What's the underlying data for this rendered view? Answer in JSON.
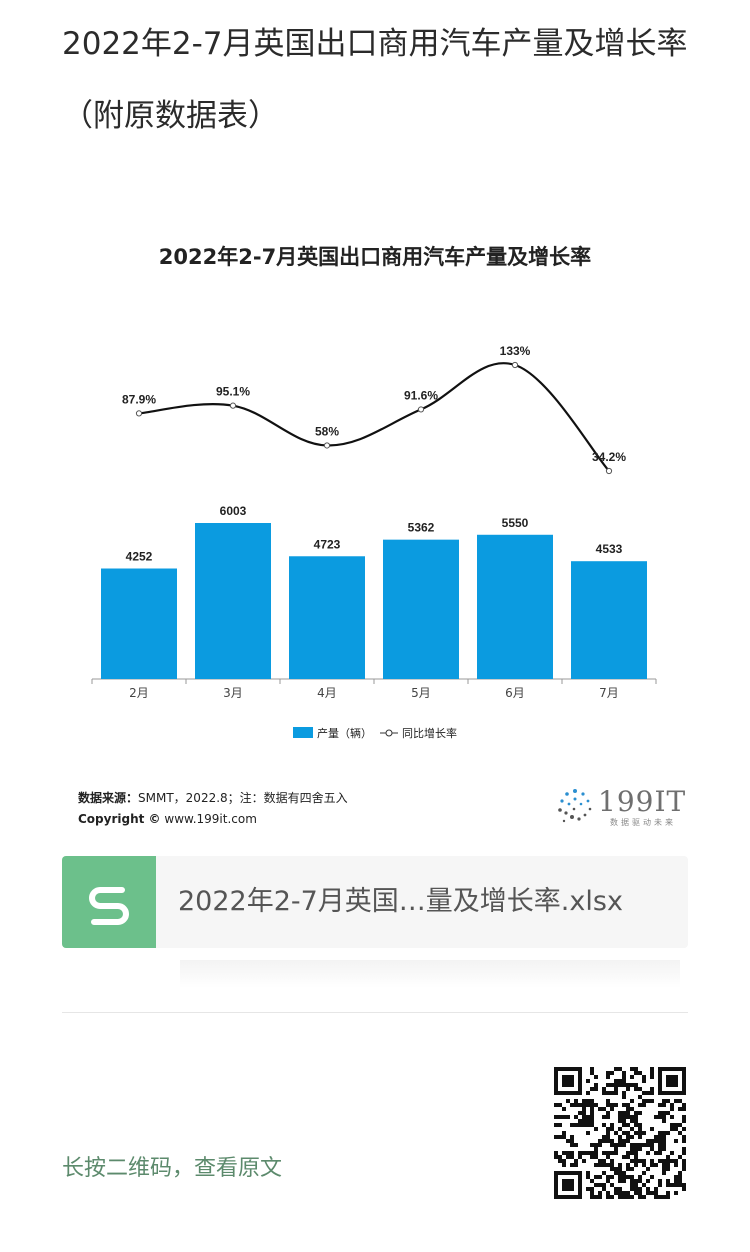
{
  "article": {
    "title": "2022年2-7月英国出口商用汽车产量及增长率（附原数据表）"
  },
  "chart_data": {
    "type": "bar",
    "title": "2022年2-7月英国出口商用汽车产量及增长率",
    "categories": [
      "2月",
      "3月",
      "4月",
      "5月",
      "6月",
      "7月"
    ],
    "series": [
      {
        "name": "产量（辆）",
        "type": "bar",
        "values": [
          4252,
          6003,
          4723,
          5362,
          5550,
          4533
        ],
        "color": "#0b9be0"
      },
      {
        "name": "同比增长率",
        "type": "line",
        "values": [
          87.9,
          95.1,
          58,
          91.6,
          133,
          34.2
        ],
        "value_labels": [
          "87.9%",
          "95.1%",
          "58%",
          "91.6%",
          "133%",
          "34.2%"
        ],
        "color": "#111111"
      }
    ],
    "ylim": [
      0,
      6000
    ],
    "grid": false,
    "legend_placement": "bottom-center"
  },
  "source": {
    "label": "数据来源：",
    "text": "SMMT，2022.8；注：数据有四舍五入",
    "copyright_label": "Copyright ©",
    "copyright_text": "www.199it.com"
  },
  "logo": {
    "text": "199IT",
    "tagline": "数据驱动未来"
  },
  "file_card": {
    "file_name": "2022年2-7月英国…量及增长率.xlsx",
    "icon": "spreadsheet-icon",
    "icon_color": "#6cc08b"
  },
  "footer": {
    "qr_hint": "长按二维码，查看原文",
    "qr_icon": "qr-code-icon"
  }
}
